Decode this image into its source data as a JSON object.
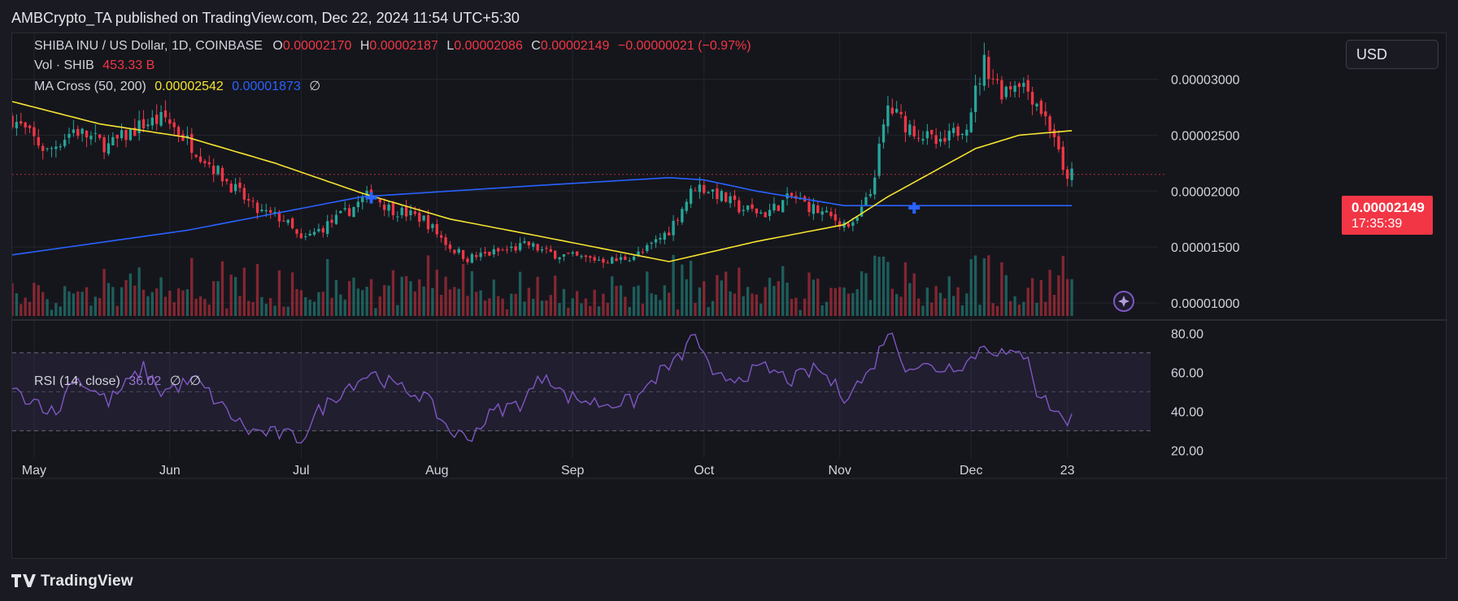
{
  "header": {
    "published": "AMBCrypto_TA published on TradingView.com, Dec 22, 2024 11:54 UTC+5:30"
  },
  "legend": {
    "symbol": "SHIBA INU / US Dollar, 1D, COINBASE",
    "o_label": "O",
    "o_value": "0.00002170",
    "h_label": "H",
    "h_value": "0.00002187",
    "l_label": "L",
    "l_value": "0.00002086",
    "c_label": "C",
    "c_value": "0.00002149",
    "change": "−0.00000021 (−0.97%)",
    "vol_label": "Vol · SHIB",
    "vol_value": "453.33 B",
    "ma_label": "MA Cross (50, 200)",
    "ma_fast": "0.00002542",
    "ma_slow": "0.00001873",
    "ma_extra": "∅",
    "rsi_label": "RSI (14, close)",
    "rsi_value": "36.02",
    "rsi_extra1": "∅",
    "rsi_extra2": "∅"
  },
  "currency": "USD",
  "price_tag": {
    "price": "0.00002149",
    "countdown": "17:35:39"
  },
  "footer": {
    "logo_text": "TradingView"
  },
  "colors": {
    "up": "#26a69a",
    "down": "#f23645",
    "ma_fast": "#f7e330",
    "ma_slow": "#2962ff",
    "rsi": "#7e57c2"
  },
  "chart_data": [
    {
      "type": "candlestick",
      "title": "SHIBA INU / US Dollar, 1D, COINBASE",
      "y_ticks": [
        "0.00003000",
        "0.00002500",
        "0.00002000",
        "0.00001500",
        "0.00001000"
      ],
      "y_tick_values": [
        3e-05,
        2.5e-05,
        2e-05,
        1.5e-05,
        1e-05
      ],
      "ylim": [
        8.7e-06,
        3.41e-05
      ],
      "x_ticks": [
        "May",
        "Jun",
        "Jul",
        "Aug",
        "Sep",
        "Oct",
        "Nov",
        "Dec",
        "23"
      ],
      "x_tick_days": [
        5,
        36,
        66,
        97,
        128,
        158,
        189,
        219,
        241
      ],
      "xlim": [
        0,
        260
      ],
      "grid": true,
      "close_anchors": [
        [
          0,
          2.65e-05
        ],
        [
          8,
          2.35e-05
        ],
        [
          14,
          2.55e-05
        ],
        [
          22,
          2.4e-05
        ],
        [
          30,
          2.6e-05
        ],
        [
          35,
          2.65e-05
        ],
        [
          40,
          2.45e-05
        ],
        [
          50,
          2.05e-05
        ],
        [
          56,
          1.82e-05
        ],
        [
          62,
          1.75e-05
        ],
        [
          66,
          1.55e-05
        ],
        [
          70,
          1.65e-05
        ],
        [
          76,
          1.8e-05
        ],
        [
          82,
          1.98e-05
        ],
        [
          86,
          1.85e-05
        ],
        [
          94,
          1.75e-05
        ],
        [
          100,
          1.5e-05
        ],
        [
          104,
          1.4e-05
        ],
        [
          110,
          1.45e-05
        ],
        [
          118,
          1.52e-05
        ],
        [
          122,
          1.45e-05
        ],
        [
          130,
          1.4e-05
        ],
        [
          138,
          1.38e-05
        ],
        [
          144,
          1.45e-05
        ],
        [
          150,
          1.65e-05
        ],
        [
          156,
          2.05e-05
        ],
        [
          160,
          2e-05
        ],
        [
          166,
          1.85e-05
        ],
        [
          172,
          1.8e-05
        ],
        [
          178,
          1.95e-05
        ],
        [
          186,
          1.78e-05
        ],
        [
          192,
          1.68e-05
        ],
        [
          196,
          1.98e-05
        ],
        [
          200,
          2.75e-05
        ],
        [
          204,
          2.6e-05
        ],
        [
          212,
          2.4e-05
        ],
        [
          218,
          2.62e-05
        ],
        [
          222,
          3.15e-05
        ],
        [
          226,
          2.9e-05
        ],
        [
          230,
          3e-05
        ],
        [
          234,
          2.8e-05
        ],
        [
          238,
          2.5e-05
        ],
        [
          240,
          2.15e-05
        ],
        [
          242,
          2.15e-05
        ]
      ],
      "ma_fast_anchors": [
        [
          0,
          2.8e-05
        ],
        [
          20,
          2.6e-05
        ],
        [
          40,
          2.48e-05
        ],
        [
          60,
          2.25e-05
        ],
        [
          80,
          1.98e-05
        ],
        [
          100,
          1.75e-05
        ],
        [
          120,
          1.6e-05
        ],
        [
          150,
          1.37e-05
        ],
        [
          170,
          1.55e-05
        ],
        [
          190,
          1.7e-05
        ],
        [
          200,
          1.95e-05
        ],
        [
          220,
          2.38e-05
        ],
        [
          230,
          2.5e-05
        ],
        [
          242,
          2.54e-05
        ]
      ],
      "ma_slow_anchors": [
        [
          0,
          1.43e-05
        ],
        [
          40,
          1.65e-05
        ],
        [
          80,
          1.95e-05
        ],
        [
          120,
          2.05e-05
        ],
        [
          150,
          2.12e-05
        ],
        [
          158,
          2.1e-05
        ],
        [
          170,
          2e-05
        ],
        [
          190,
          1.87e-05
        ],
        [
          220,
          1.87e-05
        ],
        [
          242,
          1.87e-05
        ]
      ],
      "cross_markers": [
        {
          "day": 82,
          "value": 1.94e-05
        },
        {
          "day": 206,
          "value": 1.85e-05
        }
      ]
    },
    {
      "type": "bar",
      "title": "Vol · SHIB",
      "note": "volume histogram at the bottom of the price pane"
    },
    {
      "type": "line",
      "title": "RSI (14, close)",
      "y_ticks": [
        "80.00",
        "60.00",
        "40.00",
        "20.00"
      ],
      "y_tick_values": [
        80,
        60,
        40,
        20
      ],
      "ylim": [
        16,
        86
      ],
      "bands": [
        70,
        50,
        30
      ],
      "rsi_anchors": [
        [
          0,
          50
        ],
        [
          6,
          45
        ],
        [
          10,
          38
        ],
        [
          14,
          58
        ],
        [
          22,
          45
        ],
        [
          30,
          62
        ],
        [
          34,
          50
        ],
        [
          42,
          56
        ],
        [
          48,
          42
        ],
        [
          54,
          30
        ],
        [
          62,
          28
        ],
        [
          66,
          26
        ],
        [
          70,
          40
        ],
        [
          76,
          52
        ],
        [
          82,
          60
        ],
        [
          88,
          52
        ],
        [
          94,
          48
        ],
        [
          100,
          30
        ],
        [
          104,
          26
        ],
        [
          110,
          40
        ],
        [
          116,
          44
        ],
        [
          122,
          60
        ],
        [
          126,
          48
        ],
        [
          134,
          44
        ],
        [
          142,
          45
        ],
        [
          148,
          60
        ],
        [
          152,
          66
        ],
        [
          156,
          80
        ],
        [
          160,
          56
        ],
        [
          166,
          58
        ],
        [
          172,
          62
        ],
        [
          178,
          56
        ],
        [
          184,
          62
        ],
        [
          190,
          48
        ],
        [
          196,
          60
        ],
        [
          200,
          82
        ],
        [
          204,
          64
        ],
        [
          212,
          62
        ],
        [
          218,
          65
        ],
        [
          222,
          74
        ],
        [
          228,
          68
        ],
        [
          232,
          70
        ],
        [
          234,
          50
        ],
        [
          240,
          36
        ],
        [
          242,
          36
        ]
      ]
    }
  ]
}
